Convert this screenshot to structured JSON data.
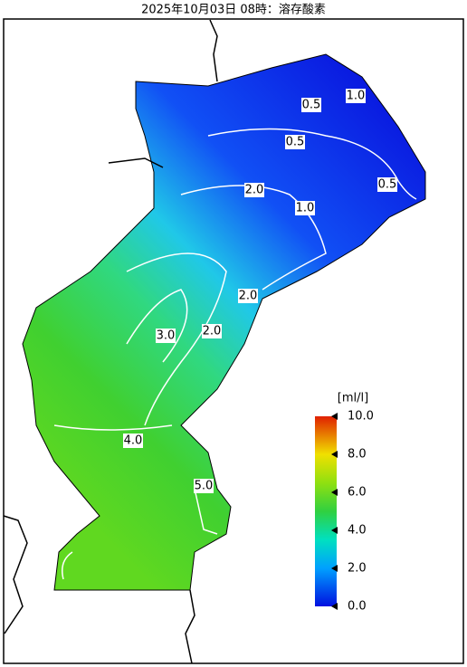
{
  "title": "2025年10月03日 08時：溶存酸素",
  "colorbar": {
    "unit": "[ml/l]",
    "range": [
      0,
      10
    ],
    "ticks": [
      {
        "value": 10,
        "label": "10.0"
      },
      {
        "value": 8,
        "label": "8.0"
      },
      {
        "value": 6,
        "label": "6.0"
      },
      {
        "value": 4,
        "label": "4.0"
      },
      {
        "value": 2,
        "label": "2.0"
      },
      {
        "value": 0,
        "label": "0.0"
      }
    ]
  },
  "contour_labels": [
    {
      "value": 0.5,
      "label": "0.5"
    },
    {
      "value": 1,
      "label": "1.0"
    },
    {
      "value": 0.5,
      "label": "0.5"
    },
    {
      "value": 0.5,
      "label": "0.5"
    },
    {
      "value": 2,
      "label": "2.0"
    },
    {
      "value": 1,
      "label": "1.0"
    },
    {
      "value": 2,
      "label": "2.0"
    },
    {
      "value": 3,
      "label": "3.0"
    },
    {
      "value": 2,
      "label": "2.0"
    },
    {
      "value": 4,
      "label": "4.0"
    },
    {
      "value": 5,
      "label": "5.0"
    }
  ]
}
